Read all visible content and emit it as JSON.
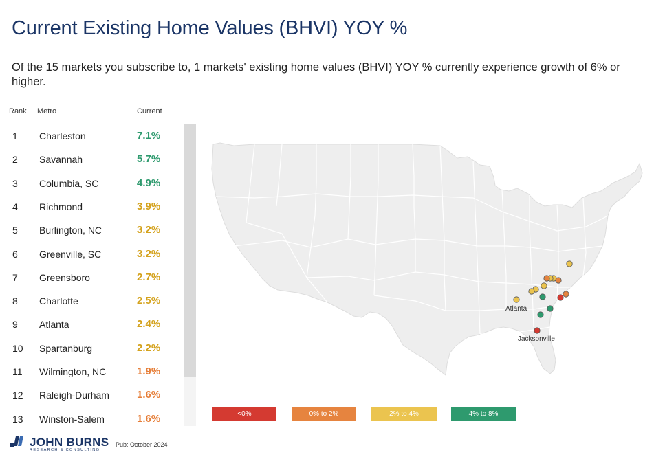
{
  "title": "Current Existing Home Values (BHVI) YOY %",
  "subtitle": "Of the 15 markets you subscribe to, 1 markets' existing home values (BHVI) YOY % currently experience growth of 6% or higher.",
  "table": {
    "headers": {
      "rank": "Rank",
      "metro": "Metro",
      "current": "Current"
    },
    "rows": [
      {
        "rank": "1",
        "metro": "Charleston",
        "value": "7.1%",
        "color": "#2e9a6e"
      },
      {
        "rank": "2",
        "metro": "Savannah",
        "value": "5.7%",
        "color": "#2e9a6e"
      },
      {
        "rank": "3",
        "metro": "Columbia, SC",
        "value": "4.9%",
        "color": "#2e9a6e"
      },
      {
        "rank": "4",
        "metro": "Richmond",
        "value": "3.9%",
        "color": "#d4a21d"
      },
      {
        "rank": "5",
        "metro": "Burlington, NC",
        "value": "3.2%",
        "color": "#d4a21d"
      },
      {
        "rank": "6",
        "metro": "Greenville, SC",
        "value": "3.2%",
        "color": "#d4a21d"
      },
      {
        "rank": "7",
        "metro": "Greensboro",
        "value": "2.7%",
        "color": "#d4a21d"
      },
      {
        "rank": "8",
        "metro": "Charlotte",
        "value": "2.5%",
        "color": "#d4a21d"
      },
      {
        "rank": "9",
        "metro": "Atlanta",
        "value": "2.4%",
        "color": "#d4a21d"
      },
      {
        "rank": "10",
        "metro": "Spartanburg",
        "value": "2.2%",
        "color": "#d4a21d"
      },
      {
        "rank": "11",
        "metro": "Wilmington, NC",
        "value": "1.9%",
        "color": "#e67e38"
      },
      {
        "rank": "12",
        "metro": "Raleigh-Durham",
        "value": "1.6%",
        "color": "#e67e38"
      },
      {
        "rank": "13",
        "metro": "Winston-Salem",
        "value": "1.6%",
        "color": "#e67e38"
      }
    ]
  },
  "map": {
    "labels": {
      "atlanta": "Atlanta",
      "jacksonville": "Jacksonville"
    },
    "colors": {
      "land": "#eeeeee",
      "border": "#ffffff",
      "dot_stroke": "#555555"
    }
  },
  "legend": [
    {
      "label": "<0%",
      "color": "#d43a31"
    },
    {
      "label": "0% to 2%",
      "color": "#e6843f"
    },
    {
      "label": "2% to 4%",
      "color": "#ebc44f"
    },
    {
      "label": "4% to 8%",
      "color": "#2e9a6e"
    }
  ],
  "logo": {
    "name": "JOHN BURNS",
    "tagline": "RESEARCH & CONSULTING"
  },
  "pub": "Pub: October 2024"
}
